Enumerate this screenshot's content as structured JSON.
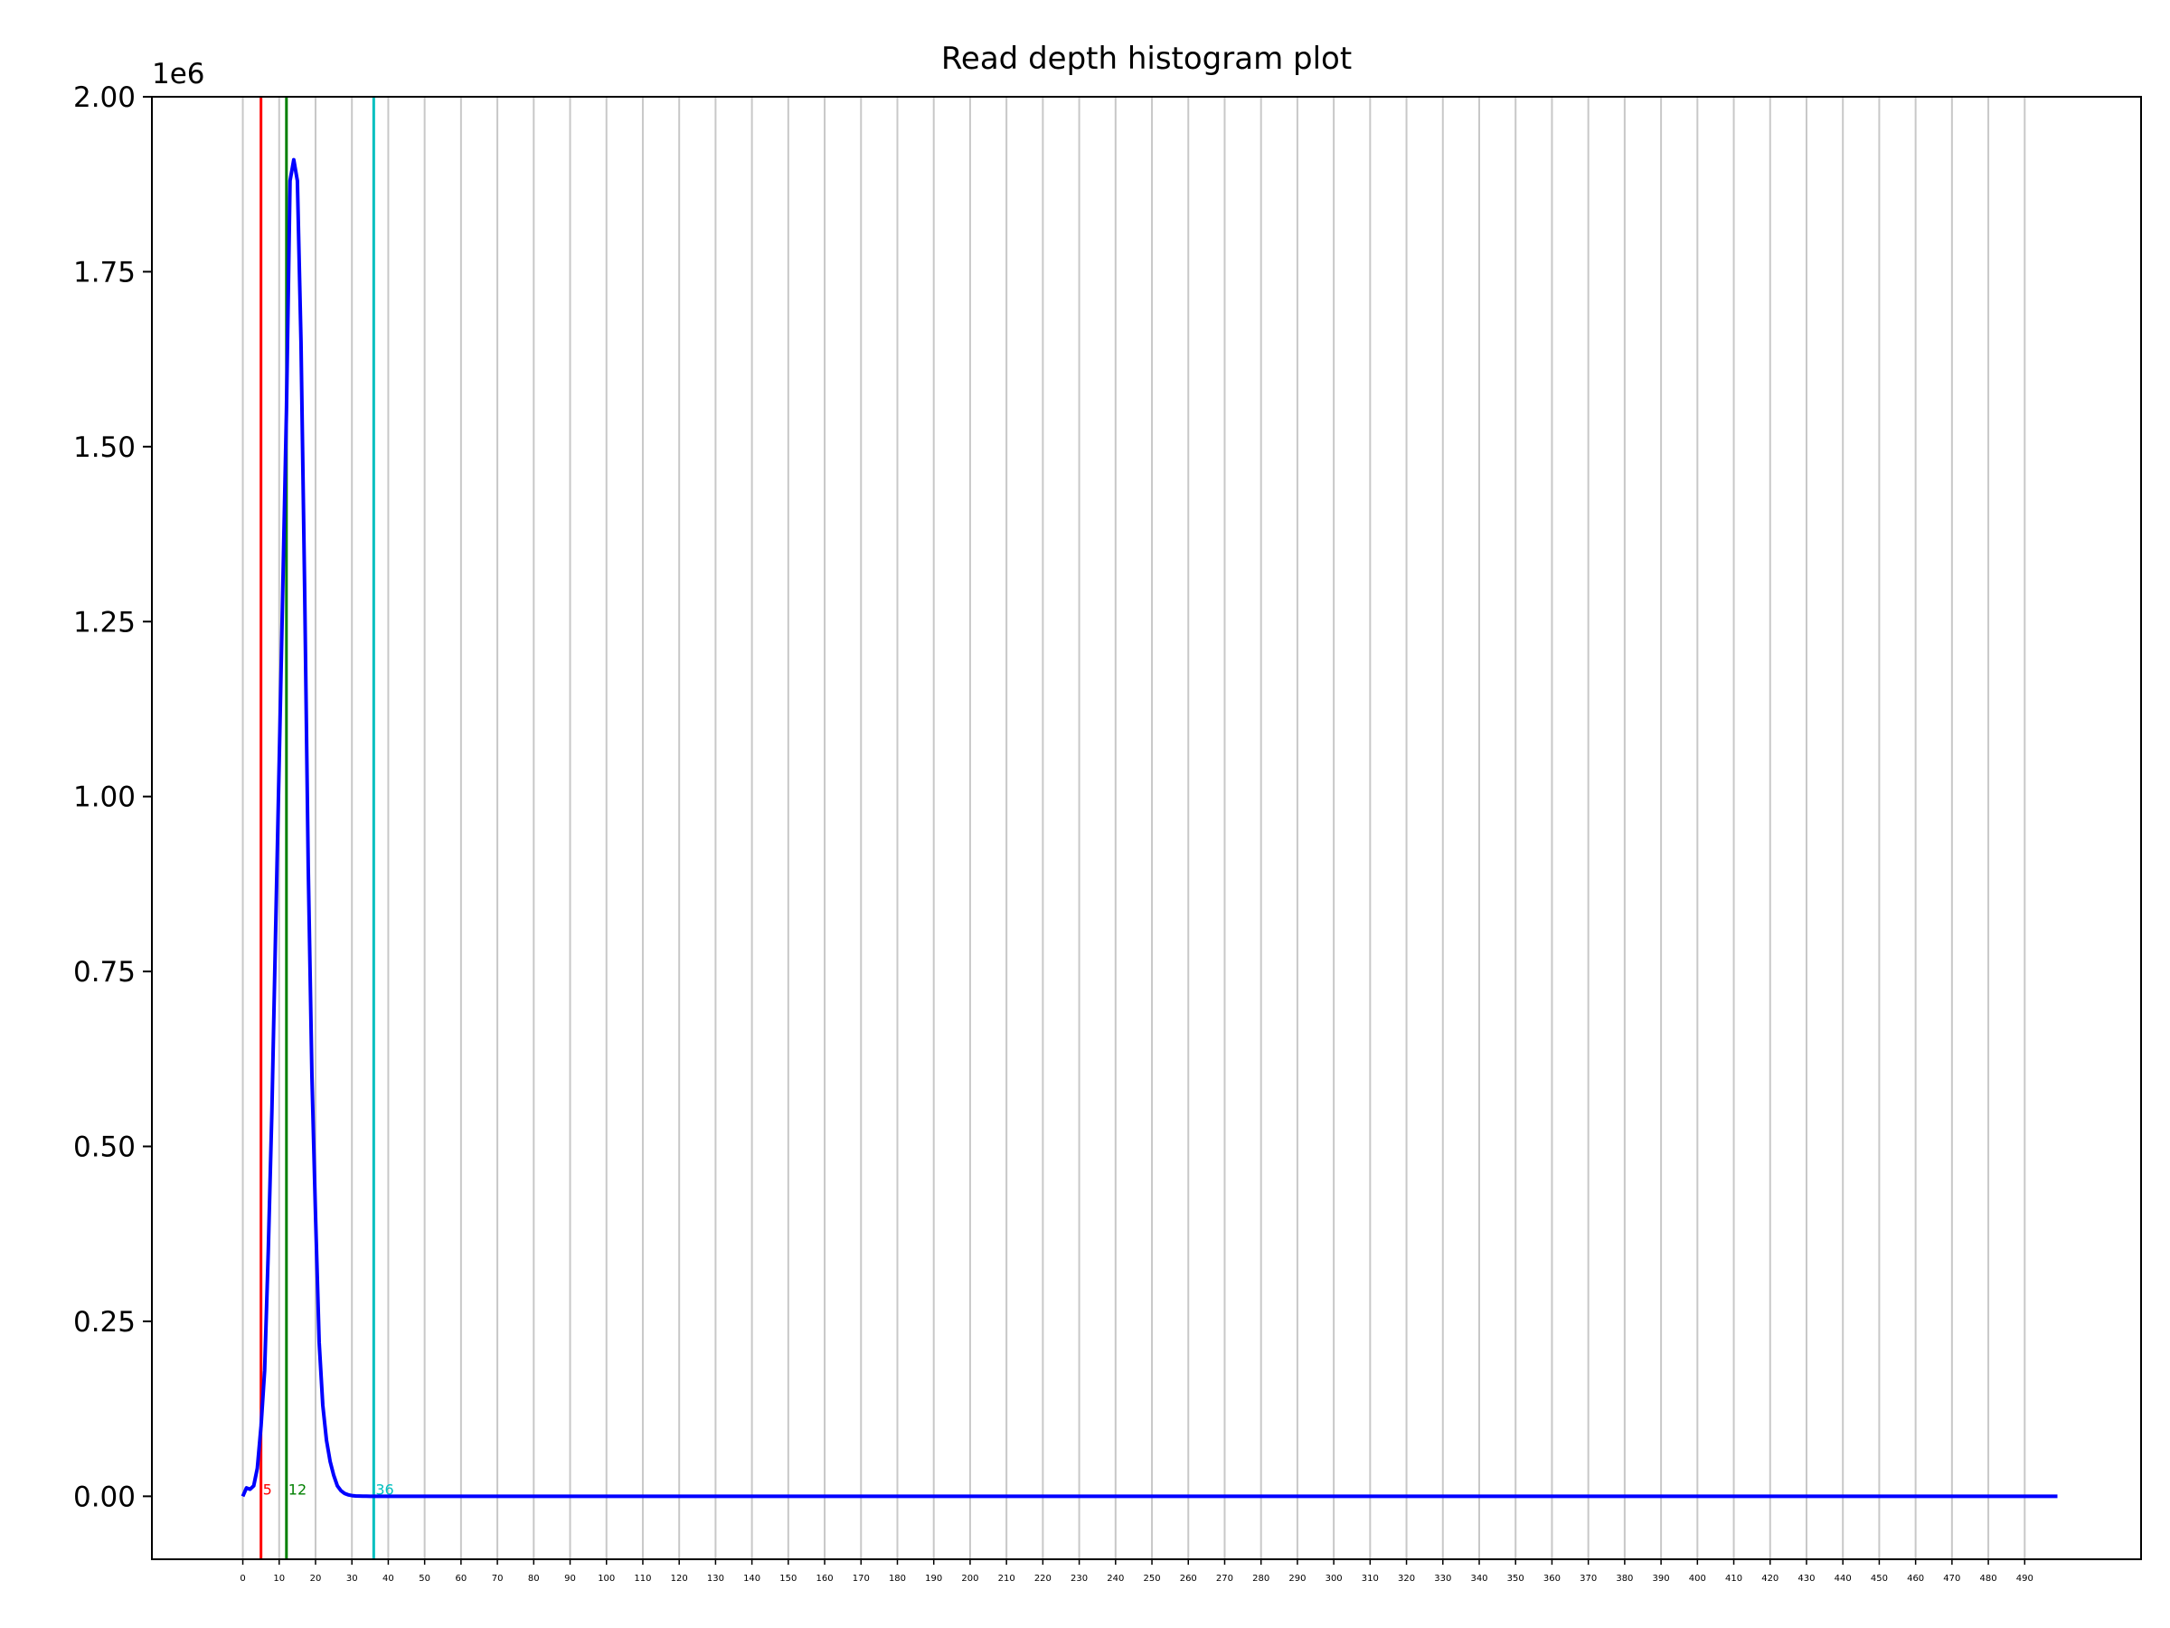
{
  "chart_data": {
    "type": "line",
    "title": "Read depth histogram plot",
    "xlabel": "",
    "ylabel": "",
    "y_offset_label": "1e6",
    "xlim": [
      -25,
      522
    ],
    "ylim": [
      -0.09,
      2.0
    ],
    "y_unit_scale": 1000000,
    "x_ticks": [
      0,
      10,
      20,
      30,
      40,
      50,
      60,
      70,
      80,
      90,
      100,
      110,
      120,
      130,
      140,
      150,
      160,
      170,
      180,
      190,
      200,
      210,
      220,
      230,
      240,
      250,
      260,
      270,
      280,
      290,
      300,
      310,
      320,
      330,
      340,
      350,
      360,
      370,
      380,
      390,
      400,
      410,
      420,
      430,
      440,
      450,
      460,
      470,
      480,
      490
    ],
    "x_tick_labels": [
      "0",
      "10",
      "20",
      "30",
      "40",
      "50",
      "60",
      "70",
      "80",
      "90",
      "100",
      "110",
      "120",
      "130",
      "140",
      "150",
      "160",
      "170",
      "180",
      "190",
      "200",
      "210",
      "220",
      "230",
      "240",
      "250",
      "260",
      "270",
      "280",
      "290",
      "300",
      "310",
      "320",
      "330",
      "340",
      "350",
      "360",
      "370",
      "380",
      "390",
      "400",
      "410",
      "420",
      "430",
      "440",
      "450",
      "460",
      "470",
      "480",
      "490"
    ],
    "y_ticks": [
      0.0,
      0.25,
      0.5,
      0.75,
      1.0,
      1.25,
      1.5,
      1.75,
      2.0
    ],
    "y_tick_labels": [
      "0.00",
      "0.25",
      "0.50",
      "0.75",
      "1.00",
      "1.25",
      "1.50",
      "1.75",
      "2.00"
    ],
    "grid": "vertical",
    "series": [
      {
        "color": "#0000ff",
        "x": [
          0,
          1,
          2,
          3,
          4,
          5,
          6,
          7,
          8,
          9,
          10,
          11,
          12,
          13,
          14,
          15,
          16,
          17,
          18,
          19,
          20,
          21,
          22,
          23,
          24,
          25,
          26,
          27,
          28,
          29,
          30,
          31,
          32,
          33,
          34,
          35,
          36,
          37,
          38,
          40,
          60,
          100,
          200,
          300,
          400,
          499
        ],
        "y": [
          0.0,
          0.012,
          0.01,
          0.015,
          0.04,
          0.1,
          0.18,
          0.35,
          0.55,
          0.8,
          1.05,
          1.3,
          1.55,
          1.88,
          1.91,
          1.88,
          1.65,
          1.3,
          0.9,
          0.6,
          0.4,
          0.22,
          0.13,
          0.08,
          0.05,
          0.03,
          0.015,
          0.008,
          0.004,
          0.002,
          0.001,
          0.0005,
          0.0003,
          0.0002,
          0.0001,
          0.0,
          0.0,
          0.0,
          0.0,
          0.0,
          0.0,
          0.0,
          0.0,
          0.0,
          0.0,
          0.0
        ]
      }
    ],
    "vertical_lines": [
      {
        "x": 5,
        "label": "5",
        "color": "#ff0000"
      },
      {
        "x": 12,
        "label": "12",
        "color": "#008000"
      },
      {
        "x": 36,
        "label": "36",
        "color": "#00bfbf"
      }
    ]
  }
}
